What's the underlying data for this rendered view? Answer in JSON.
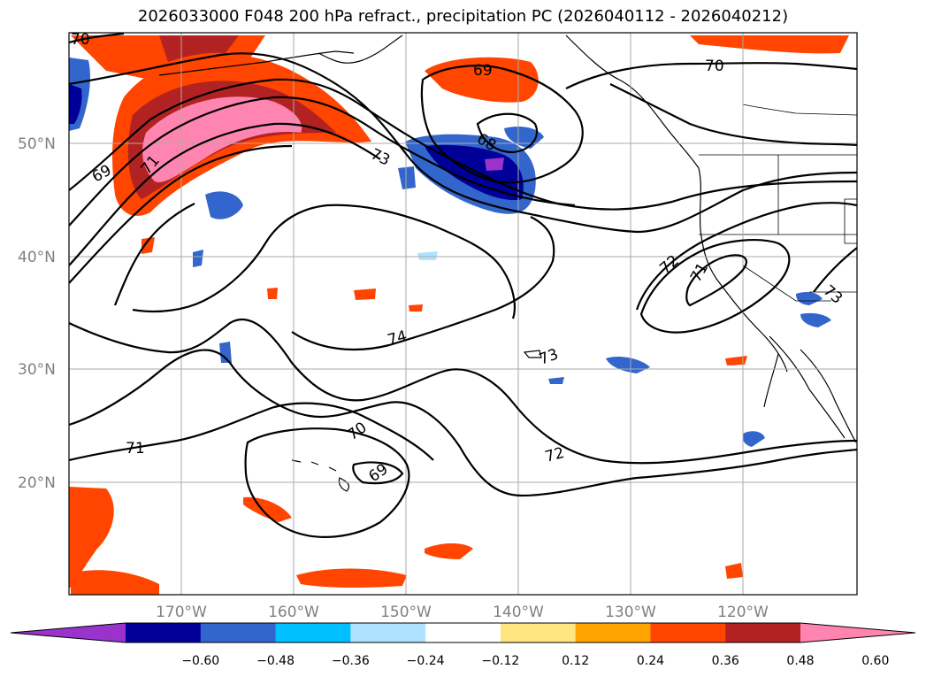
{
  "title": "2026033000 F048 200 hPa refract., precipitation PC (2026040112 - 2026040212)",
  "lat_labels": [
    "50°N",
    "40°N",
    "30°N",
    "20°N"
  ],
  "lon_labels": [
    "170°W",
    "160°W",
    "150°W",
    "140°W",
    "130°W",
    "120°W"
  ],
  "colorbar": {
    "ticks": [
      "−0.60",
      "−0.48",
      "−0.36",
      "−0.24",
      "−0.12",
      "0.12",
      "0.24",
      "0.36",
      "0.48",
      "0.60"
    ],
    "colors": [
      "#9933cc",
      "#000099",
      "#3366cc",
      "#00bfff",
      "#aee2ff",
      "#ffffff",
      "#ffe680",
      "#ffa500",
      "#ff4500",
      "#b22222",
      "#ff85b0"
    ]
  },
  "contour_labels": [
    "70",
    "69",
    "71",
    "73",
    "68",
    "69",
    "70",
    "72",
    "71",
    "73",
    "74",
    "73",
    "71",
    "70",
    "69",
    "72"
  ]
}
